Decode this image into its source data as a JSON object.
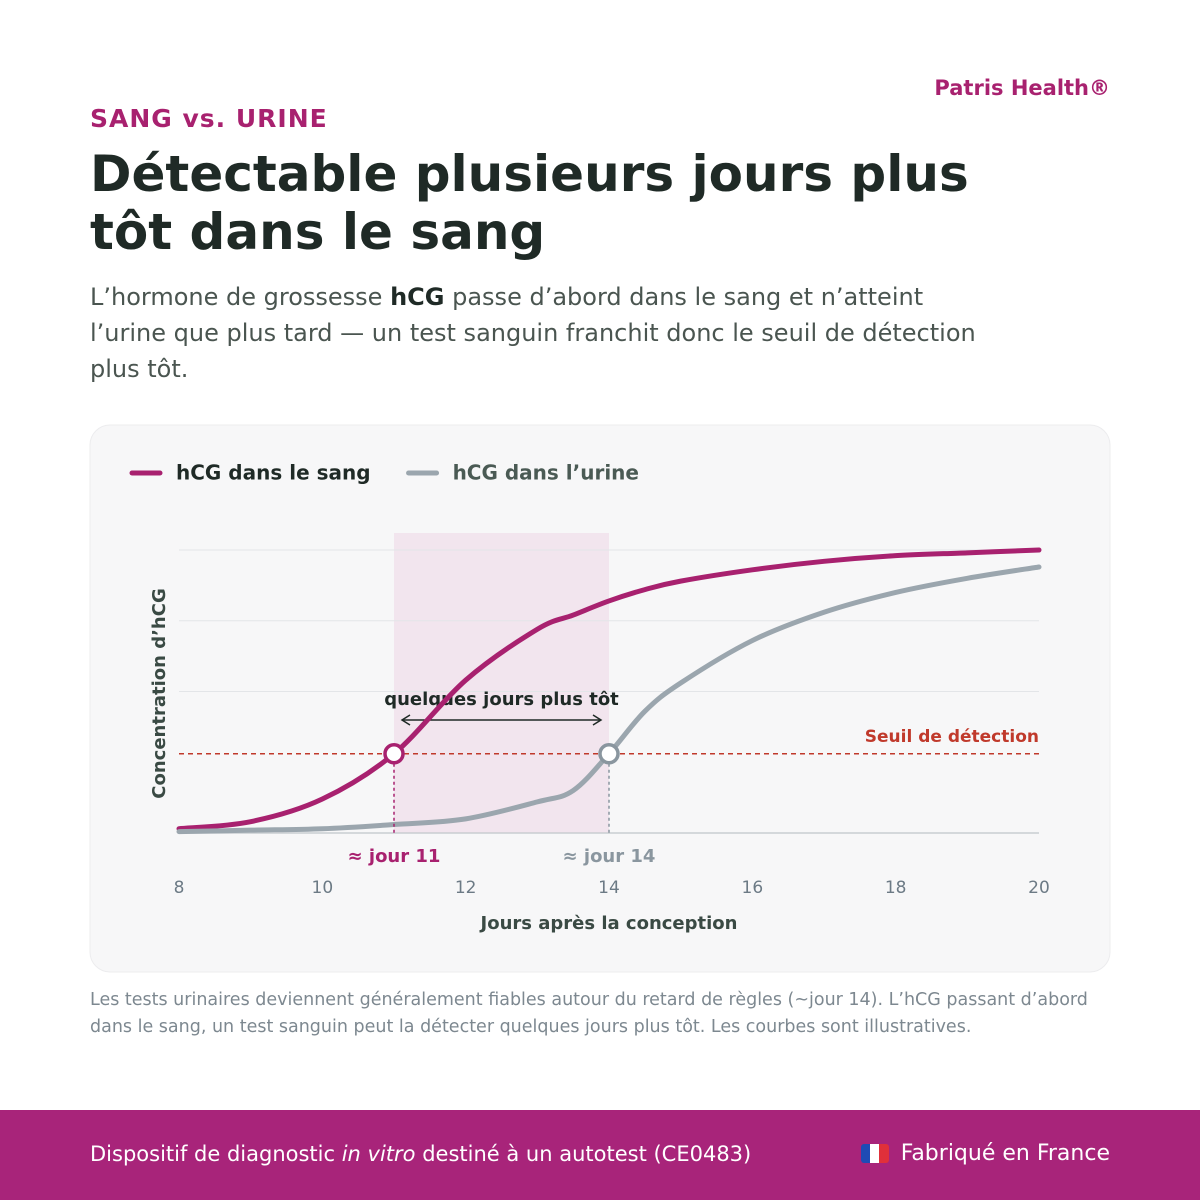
{
  "header": {
    "brand": "Patris Health®",
    "kicker": "SANG vs. URINE",
    "title": "Détectable plusieurs jours plus tôt dans le sang",
    "intro": [
      "L’hormone de grossesse ",
      "hCG",
      " passe d’abord dans le sang et n’atteint l’urine que plus tard — un test sanguin franchit donc le seuil de détection plus tôt."
    ]
  },
  "chart_data": {
    "type": "line",
    "x_label": "Jours après la conception",
    "y_label": "Concentration d’hCG",
    "x": [
      8,
      9,
      10,
      11,
      12,
      13,
      13.5,
      14,
      14.5,
      15,
      16,
      17,
      18,
      19,
      20
    ],
    "series": [
      {
        "name": "hCG dans le sang",
        "color": "#a8216f",
        "values": [
          1.5,
          4,
          12,
          28,
          54,
          72,
          77,
          82,
          86,
          89,
          93,
          96,
          98,
          99,
          100
        ]
      },
      {
        "name": "hCG dans l’urine",
        "color": "#9ba6ae",
        "values": [
          0.5,
          1,
          1.5,
          3,
          5,
          11,
          15,
          28,
          43,
          53,
          68,
          78,
          85,
          90,
          94
        ]
      }
    ],
    "xlim": [
      8,
      20
    ],
    "xticks": [
      8,
      10,
      12,
      14,
      16,
      18,
      20
    ],
    "ylim": [
      0,
      100
    ],
    "yticks": [
      0,
      50,
      75,
      100
    ],
    "grid": true,
    "threshold": {
      "value": 28,
      "label": "Seuil de détection",
      "color": "#c0392b"
    },
    "markers": [
      {
        "x": 11,
        "label": "≈ jour 11",
        "color": "#a8216f"
      },
      {
        "x": 14,
        "label": "≈ jour 14",
        "color": "#8a969f"
      }
    ],
    "highlight": {
      "from": 11,
      "to": 14,
      "label": "quelques jours plus tôt",
      "color": "#f2e5ee"
    }
  },
  "footnote": "Les tests urinaires deviennent généralement fiables autour du retard de règles (~jour 14). L’hCG passant d’abord dans le sang, un test sanguin peut la détecter quelques jours plus tôt. Les courbes sont illustratives.",
  "footer": {
    "left": [
      "Dispositif de diagnostic ",
      "in vitro",
      " destiné à un autotest (CE0483)"
    ],
    "right": "Fabriqué en France"
  }
}
